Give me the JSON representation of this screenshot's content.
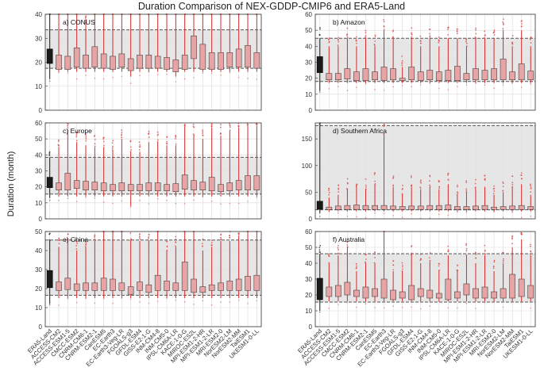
{
  "figure": {
    "title": "Duration Comparison of NEX-GDDP-CMIP6 and ERA5-Land",
    "ylabel": "Duration (month)"
  },
  "colors": {
    "envelope": "#e2e2e2",
    "reference_box": "#1a1a1a",
    "model_box": "#e8a4a4",
    "whisker": "#d42a2a",
    "outlier": "#e04a4a",
    "dashed_line": "#555555",
    "grid": "#d9d9d9"
  },
  "categories": [
    "ERA5-Land",
    "ACCESS-CM2",
    "ACCESS-ESM1-5",
    "CMCC-ESM2",
    "CNRM-CM6-1",
    "CNRM-ESM2-1",
    "CanESM5",
    "EC-Earth3",
    "EC-Earth3-Veg-LR",
    "FGOALS-g3",
    "GFDL-ESM4",
    "GISS-E2-1-G",
    "INM-CM4-8",
    "INM-CM5-0",
    "IPSL-CM6A-LR",
    "KACE-1-0-G",
    "MIROC-ES2L",
    "MPI-ESM1-2-HR",
    "MPI-ESM1-2-LR",
    "MRI-ESM2-0",
    "NorESM2-LM",
    "NorESM2-MM",
    "TaiESM1",
    "UKESM1-0-LL"
  ],
  "chart_data": [
    {
      "type": "box",
      "panel": "a) CONUS",
      "ylim": [
        0,
        40
      ],
      "yticks": [
        0,
        10,
        20,
        30,
        40
      ],
      "band": [
        17.5,
        33.5
      ],
      "q1": [
        19.5,
        17,
        17,
        18,
        17.5,
        18,
        17.5,
        17,
        18,
        16.5,
        17.5,
        17.5,
        17.5,
        17,
        16,
        17,
        21.5,
        17,
        17,
        17,
        18,
        18,
        18,
        17.5
      ],
      "q3": [
        25.5,
        23,
        22.5,
        26,
        23,
        26.5,
        23.5,
        22.5,
        23.5,
        21.5,
        23,
        23,
        22.5,
        22,
        21,
        23,
        31,
        27.5,
        24,
        24,
        24,
        25.5,
        27,
        24
      ],
      "wmax": [
        40,
        40,
        40,
        40,
        37,
        40,
        40,
        40,
        40,
        40,
        40,
        40,
        40,
        40,
        40,
        40,
        40,
        40,
        40,
        40,
        40,
        40,
        40,
        40
      ],
      "wmin": [
        13,
        16,
        16,
        16,
        16,
        16,
        16,
        16,
        16,
        14,
        16,
        16,
        16,
        16,
        14,
        16,
        16,
        16,
        16,
        16,
        16,
        16,
        16,
        16
      ]
    },
    {
      "type": "box",
      "panel": "b) Amazon",
      "ylim": [
        0,
        60
      ],
      "yticks": [
        0,
        10,
        20,
        30,
        40,
        50,
        60
      ],
      "band": [
        18,
        45
      ],
      "q1": [
        23.5,
        19,
        19,
        19.5,
        18.5,
        18.5,
        19,
        18.5,
        19,
        18.5,
        19,
        18.5,
        19,
        18.5,
        18.5,
        18.5,
        19,
        19,
        19,
        19,
        19,
        19,
        19,
        19
      ],
      "q3": [
        33.5,
        23,
        23,
        26,
        24,
        26,
        24,
        27,
        26,
        20,
        27,
        24,
        25,
        24,
        25,
        27.5,
        23,
        26,
        25,
        26,
        32,
        24,
        29,
        24.5
      ],
      "wmax": [
        45,
        40,
        40,
        45,
        40,
        45,
        40,
        50,
        45,
        27,
        45,
        40,
        45,
        40,
        45,
        45,
        40,
        45,
        45,
        45,
        50,
        40,
        50,
        40
      ],
      "wmin": [
        12,
        17,
        17,
        17,
        17,
        17,
        17,
        17,
        17,
        17,
        17,
        17,
        17,
        17,
        17,
        17,
        17,
        17,
        17,
        17,
        17,
        17,
        17,
        17
      ]
    },
    {
      "type": "box",
      "panel": "c) Europe",
      "ylim": [
        0,
        60
      ],
      "yticks": [
        0,
        10,
        20,
        30,
        40,
        50,
        60
      ],
      "band": [
        15.5,
        38.5
      ],
      "q1": [
        19.5,
        18,
        18,
        19,
        18,
        18,
        17.5,
        17.5,
        17.5,
        17.5,
        17.5,
        17.5,
        17.5,
        17.5,
        17,
        18.5,
        18,
        18,
        17.5,
        17,
        17.5,
        18,
        18,
        18
      ],
      "q3": [
        26,
        22.5,
        28.5,
        24,
        23.5,
        23,
        22.5,
        21.5,
        22.5,
        21.5,
        21.5,
        22.5,
        22.5,
        21.5,
        22,
        27.5,
        24,
        23,
        26,
        21.5,
        22.5,
        24,
        27,
        27
      ],
      "wmax": [
        38.5,
        45,
        55,
        48,
        46,
        45,
        45,
        43,
        50,
        42,
        42,
        48,
        48,
        46,
        46,
        58,
        52,
        50,
        57,
        52,
        55,
        57,
        58,
        58
      ],
      "wmin": [
        13,
        14,
        14,
        14,
        14,
        14,
        14,
        14,
        14,
        8,
        14,
        14,
        14,
        14,
        14,
        14,
        14,
        14,
        14,
        14,
        14,
        14,
        14,
        14
      ]
    },
    {
      "type": "box",
      "panel": "d) Southern Africa",
      "ylim": [
        0,
        180
      ],
      "yticks": [
        0,
        50,
        100,
        150
      ],
      "band": [
        17,
        175
      ],
      "q1": [
        18,
        17.5,
        17.5,
        17.5,
        17.5,
        17.5,
        17.5,
        17.5,
        17.5,
        17.5,
        17.5,
        17.5,
        17.5,
        17.5,
        17.5,
        17.5,
        17.5,
        17.5,
        17.5,
        17.5,
        17.5,
        17.5,
        17.5,
        17.5
      ],
      "q3": [
        33,
        22,
        24,
        25,
        26,
        25,
        25,
        25,
        24,
        23,
        24,
        24,
        25,
        25,
        26,
        23,
        23,
        24,
        25,
        22,
        23,
        24,
        25,
        23
      ],
      "wmax": [
        175,
        40,
        45,
        55,
        60,
        55,
        65,
        160,
        60,
        45,
        60,
        55,
        60,
        55,
        65,
        45,
        50,
        55,
        60,
        45,
        50,
        60,
        65,
        45
      ],
      "wmin": [
        10,
        14,
        14,
        14,
        14,
        14,
        14,
        14,
        14,
        14,
        14,
        14,
        14,
        14,
        14,
        14,
        14,
        14,
        14,
        14,
        14,
        14,
        14,
        14
      ]
    },
    {
      "type": "box",
      "panel": "e) China",
      "ylim": [
        0,
        50
      ],
      "yticks": [
        0,
        10,
        20,
        30,
        40,
        50
      ],
      "band": [
        16.5,
        45.5
      ],
      "q1": [
        20.5,
        19,
        19.5,
        19,
        19,
        19,
        19,
        19,
        19,
        17,
        19,
        18,
        19,
        19,
        19,
        19,
        18,
        18,
        19,
        19,
        19,
        19,
        19,
        19
      ],
      "q3": [
        29.5,
        23.5,
        25.5,
        22.5,
        23,
        23,
        25.5,
        25,
        23,
        21,
        23.5,
        22,
        27,
        24,
        23,
        34,
        25,
        21,
        22,
        23,
        24,
        25,
        26.5,
        27
      ],
      "wmax": [
        45,
        42,
        45,
        40,
        42,
        45,
        50,
        50,
        50,
        45,
        45,
        45,
        50,
        40,
        42,
        50,
        50,
        40,
        42,
        45,
        45,
        48,
        50,
        50
      ],
      "wmin": [
        12,
        15,
        15,
        15,
        15,
        15,
        15,
        15,
        15,
        15,
        15,
        15,
        15,
        15,
        15,
        15,
        15,
        15,
        15,
        15,
        15,
        15,
        15,
        15
      ]
    },
    {
      "type": "box",
      "panel": "f) Australia",
      "ylim": [
        0,
        60
      ],
      "yticks": [
        0,
        10,
        20,
        30,
        40,
        50,
        60
      ],
      "band": [
        15.5,
        46
      ],
      "q1": [
        17,
        19,
        19,
        20,
        19,
        18,
        19,
        18,
        17,
        18,
        17,
        19,
        18,
        18,
        17,
        18,
        20,
        18,
        18,
        18,
        18,
        18,
        19,
        18
      ],
      "q3": [
        30.5,
        25,
        26,
        28,
        23,
        25,
        24,
        30,
        23,
        22,
        26,
        24,
        23,
        21,
        30,
        22,
        27,
        24,
        25,
        22,
        24,
        33,
        30,
        26
      ],
      "wmax": [
        46,
        40,
        45,
        50,
        35,
        40,
        40,
        60,
        35,
        35,
        45,
        40,
        40,
        35,
        45,
        35,
        45,
        40,
        45,
        35,
        40,
        50,
        55,
        45
      ],
      "wmin": [
        10,
        16,
        16,
        16,
        16,
        16,
        16,
        16,
        16,
        16,
        16,
        16,
        16,
        16,
        16,
        16,
        16,
        16,
        16,
        16,
        16,
        16,
        16,
        16
      ]
    }
  ]
}
